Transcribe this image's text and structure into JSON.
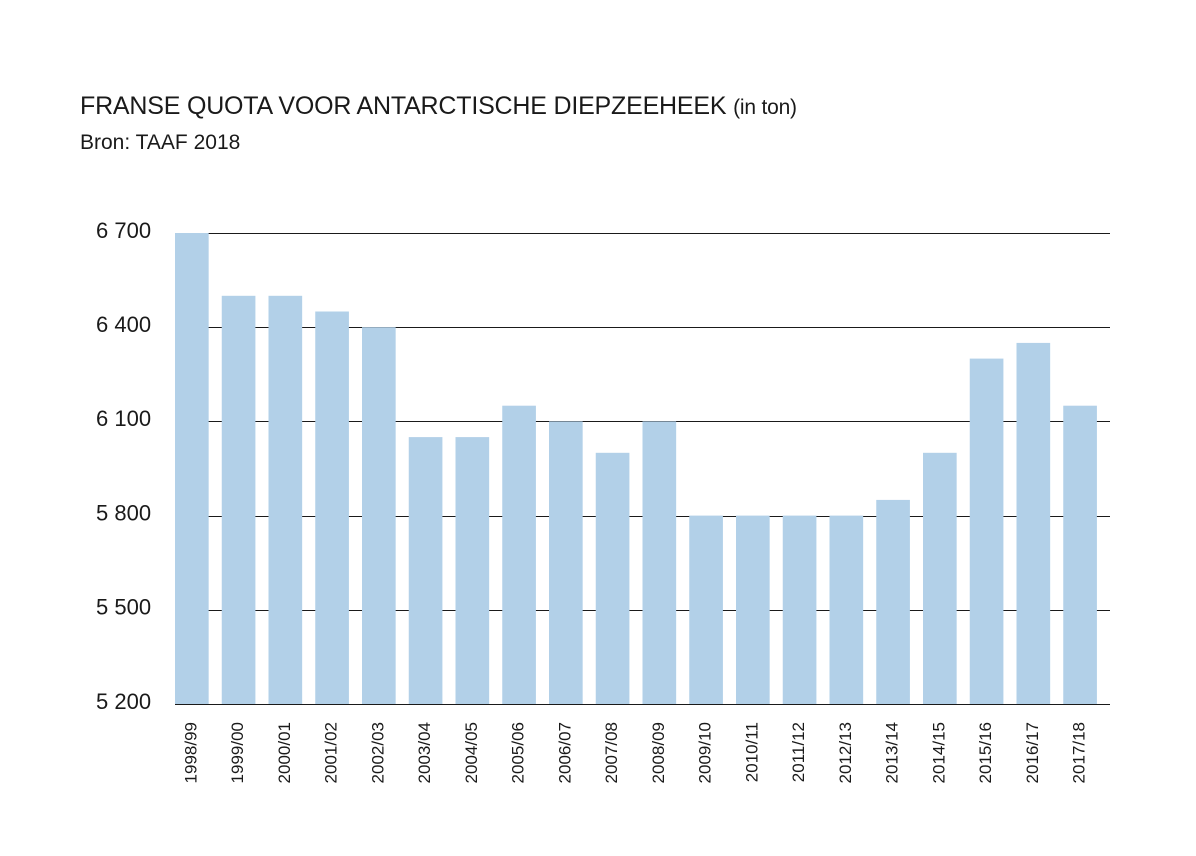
{
  "header": {
    "title": "FRANSE QUOTA VOOR ANTARCTISCHE DIEPZEEHEEK",
    "title_unit": "(in ton)",
    "source": "Bron: TAAF 2018"
  },
  "chart_data": {
    "type": "bar",
    "title": "FRANSE QUOTA VOOR ANTARCTISCHE DIEPZEEHEEK (in ton)",
    "subtitle": "Bron: TAAF 2018",
    "xlabel": "",
    "ylabel": "",
    "ylim": [
      5200,
      6700
    ],
    "yticks": [
      5200,
      5500,
      5800,
      6100,
      6400,
      6700
    ],
    "ytick_labels": [
      "5 200",
      "5 500",
      "5 800",
      "6 100",
      "6 400",
      "6 700"
    ],
    "grid": true,
    "bar_color": "#b2d0e8",
    "grid_color": "#1a1a1a",
    "categories": [
      "1998/99",
      "1999/00",
      "2000/01",
      "2001/02",
      "2002/03",
      "2003/04",
      "2004/05",
      "2005/06",
      "2006/07",
      "2007/08",
      "2008/09",
      "2009/10",
      "2010/11",
      "2011/12",
      "2012/13",
      "2013/14",
      "2014/15",
      "2015/16",
      "2016/17",
      "2017/18"
    ],
    "values": [
      6700,
      6500,
      6500,
      6450,
      6400,
      6050,
      6050,
      6150,
      6100,
      6000,
      6100,
      5800,
      5800,
      5800,
      5800,
      5850,
      6000,
      6300,
      6350,
      6150
    ]
  }
}
